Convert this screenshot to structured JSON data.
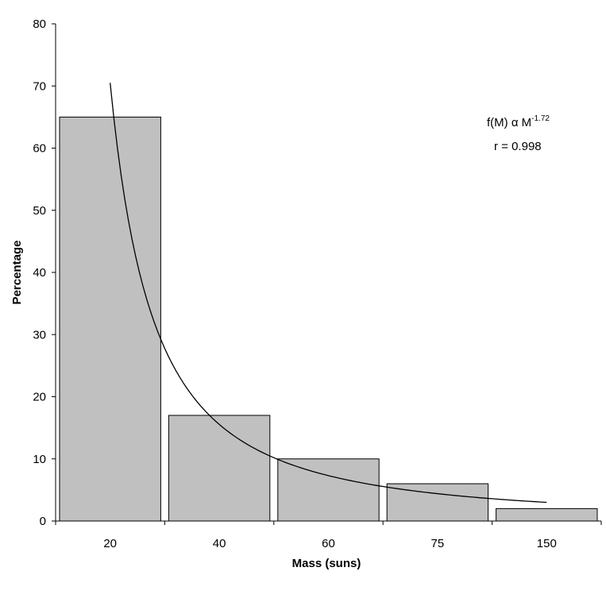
{
  "chart_data": {
    "type": "bar",
    "title": "",
    "xlabel": "Mass (suns)",
    "ylabel": "Percentage",
    "categories": [
      "20",
      "40",
      "60",
      "75",
      "150"
    ],
    "values": [
      65,
      17,
      10,
      6,
      2
    ],
    "ylim": [
      0,
      80
    ],
    "yticks": [
      "0",
      "10",
      "20",
      "30",
      "40",
      "50",
      "60",
      "70",
      "80"
    ],
    "grid": false,
    "bar_color": "#c0c0c0",
    "bar_edge_color": "#000000",
    "trendline": {
      "type": "power",
      "start": {
        "x": 20,
        "y": 70.5
      },
      "end": {
        "x": 150,
        "y": 3.0
      }
    },
    "annotation": {
      "formula_prefix": "f(M) α M",
      "formula_exponent": "-1.72",
      "r_text": "r = 0.998"
    }
  }
}
